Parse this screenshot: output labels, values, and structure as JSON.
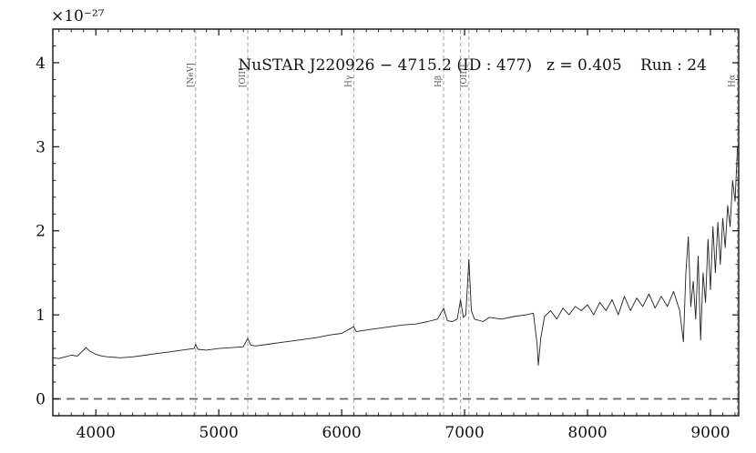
{
  "chart_data": {
    "type": "line",
    "title": {
      "source": "NuSTAR J220926 − 4715.2 (ID : 477)",
      "redshift": "z = 0.405",
      "run": "Run : 24"
    },
    "xlabel": "",
    "ylabel": "",
    "y_exponent": "×10⁻²⁷",
    "xlim": [
      3650,
      9230
    ],
    "ylim": [
      -0.2,
      4.4
    ],
    "x_ticks": [
      4000,
      5000,
      6000,
      7000,
      8000,
      9000
    ],
    "x_tick_labels": [
      "4000",
      "5000",
      "6000",
      "7000",
      "8000",
      "9000"
    ],
    "y_ticks": [
      0,
      1,
      2,
      3,
      4
    ],
    "y_tick_labels": [
      "0",
      "1",
      "2",
      "3",
      "4"
    ],
    "zero_line": 0,
    "grid": false,
    "emission_lines": [
      {
        "label": "[NeV]",
        "x": 4812
      },
      {
        "label": "[OII]",
        "x": 5236
      },
      {
        "label": "Hγ",
        "x": 6098
      },
      {
        "label": "Hβ",
        "x": 6829
      },
      {
        "label": "",
        "x": 6967
      },
      {
        "label": "[OIII]",
        "x": 7035
      },
      {
        "label": "Hα",
        "x": 9220
      }
    ],
    "series": [
      {
        "x": [
          3650,
          3700,
          3750,
          3800,
          3850,
          3900,
          3920,
          3950,
          4000,
          4050,
          4100,
          4200,
          4300,
          4400,
          4500,
          4600,
          4700,
          4800,
          4812,
          4830,
          4900,
          5000,
          5100,
          5200,
          5236,
          5260,
          5300,
          5400,
          5500,
          5600,
          5700,
          5800,
          5900,
          6000,
          6098,
          6120,
          6200,
          6300,
          6400,
          6500,
          6600,
          6700,
          6780,
          6829,
          6860,
          6900,
          6940,
          6967,
          6990,
          7010,
          7035,
          7055,
          7080,
          7150,
          7200,
          7300,
          7400,
          7500,
          7560,
          7590,
          7600,
          7620,
          7650,
          7700,
          7750,
          7800,
          7850,
          7900,
          7950,
          8000,
          8050,
          8100,
          8150,
          8200,
          8250,
          8300,
          8350,
          8400,
          8450,
          8500,
          8550,
          8600,
          8650,
          8700,
          8750,
          8780,
          8800,
          8820,
          8840,
          8860,
          8880,
          8900,
          8920,
          8940,
          8960,
          8980,
          9000,
          9020,
          9040,
          9060,
          9080,
          9100,
          9120,
          9140,
          9160,
          9180,
          9200,
          9220
        ],
        "y": [
          0.49,
          0.48,
          0.5,
          0.52,
          0.51,
          0.58,
          0.61,
          0.57,
          0.53,
          0.51,
          0.5,
          0.49,
          0.5,
          0.52,
          0.54,
          0.56,
          0.58,
          0.6,
          0.65,
          0.59,
          0.58,
          0.6,
          0.61,
          0.62,
          0.72,
          0.64,
          0.63,
          0.65,
          0.67,
          0.69,
          0.71,
          0.73,
          0.76,
          0.78,
          0.86,
          0.8,
          0.82,
          0.84,
          0.86,
          0.88,
          0.89,
          0.92,
          0.95,
          1.08,
          0.93,
          0.92,
          0.95,
          1.18,
          0.97,
          1.0,
          1.66,
          1.05,
          0.95,
          0.92,
          0.97,
          0.95,
          0.98,
          1.0,
          1.02,
          0.65,
          0.4,
          0.72,
          0.98,
          1.05,
          0.95,
          1.08,
          1.0,
          1.1,
          1.05,
          1.12,
          1.0,
          1.15,
          1.05,
          1.18,
          1.0,
          1.22,
          1.05,
          1.2,
          1.1,
          1.25,
          1.08,
          1.22,
          1.1,
          1.28,
          1.05,
          0.68,
          1.5,
          1.93,
          1.1,
          1.4,
          0.95,
          1.7,
          0.7,
          1.5,
          1.15,
          1.9,
          1.3,
          2.05,
          1.5,
          2.1,
          1.6,
          2.15,
          1.8,
          2.3,
          2.05,
          2.6,
          2.35,
          3.0
        ]
      }
    ]
  }
}
